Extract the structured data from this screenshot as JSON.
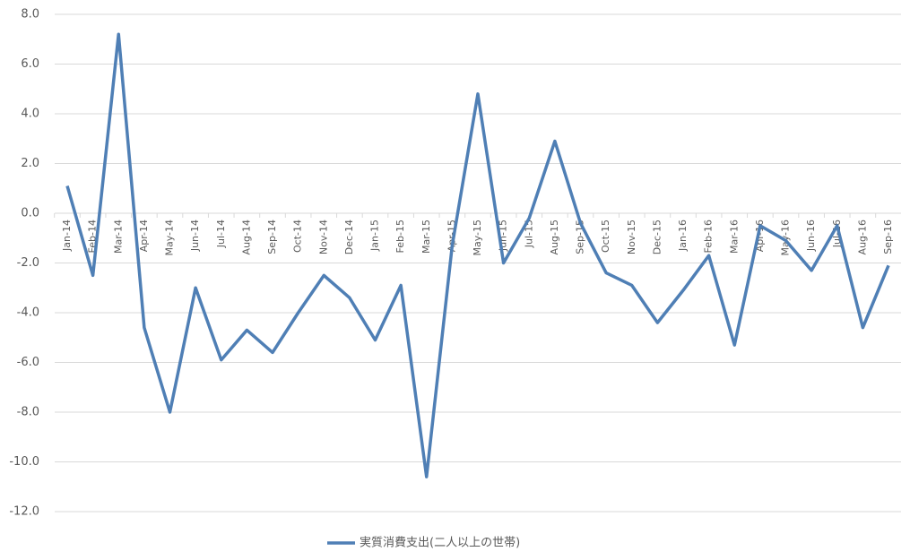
{
  "chart_data": {
    "type": "line",
    "categories": [
      "Jan-14",
      "Feb-14",
      "Mar-14",
      "Apr-14",
      "May-14",
      "Jun-14",
      "Jul-14",
      "Aug-14",
      "Sep-14",
      "Oct-14",
      "Nov-14",
      "Dec-14",
      "Jan-15",
      "Feb-15",
      "Mar-15",
      "Apr-15",
      "May-15",
      "Jun-15",
      "Jul-15",
      "Aug-15",
      "Sep-15",
      "Oct-15",
      "Nov-15",
      "Dec-15",
      "Jan-16",
      "Feb-16",
      "Mar-16",
      "Apr-16",
      "May-16",
      "Jun-16",
      "Jul-16",
      "Aug-16",
      "Sep-16"
    ],
    "series": [
      {
        "name": "実質消費支出(二人以上の世帯)",
        "color": "#4f7fb5",
        "values": [
          1.1,
          -2.5,
          7.2,
          -4.6,
          -8.0,
          -3.0,
          -5.9,
          -4.7,
          -5.6,
          -4.0,
          -2.5,
          -3.4,
          -5.1,
          -2.9,
          -10.6,
          -1.3,
          4.8,
          -2.0,
          -0.2,
          2.9,
          -0.4,
          -2.4,
          -2.9,
          -4.4,
          -3.1,
          -1.7,
          -5.3,
          -0.5,
          -1.1,
          -2.3,
          -0.5,
          -4.6,
          -2.1
        ]
      }
    ],
    "ylim": [
      -12,
      8
    ],
    "yticks": [
      {
        "value": 8,
        "label": "8.0"
      },
      {
        "value": 6,
        "label": "6.0"
      },
      {
        "value": 4,
        "label": "4.0"
      },
      {
        "value": 2,
        "label": "2.0"
      },
      {
        "value": 0,
        "label": "0.0"
      },
      {
        "value": -2,
        "label": "-2.0"
      },
      {
        "value": -4,
        "label": "-4.0"
      },
      {
        "value": -6,
        "label": "-6.0"
      },
      {
        "value": -8,
        "label": "-8.0"
      },
      {
        "value": -10,
        "label": "-10.0"
      },
      {
        "value": -12,
        "label": "-12.0"
      }
    ],
    "grid": true,
    "legend": "bottom"
  }
}
